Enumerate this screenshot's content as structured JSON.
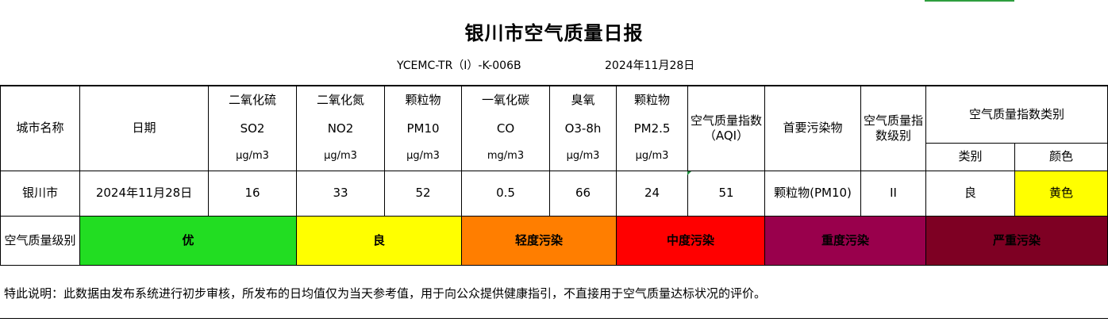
{
  "report": {
    "title": "银川市空气质量日报",
    "code": "YCEMC-TR（I）-K-006B",
    "date": "2024年11月28日"
  },
  "headers": {
    "city": "城市名称",
    "date": "日期",
    "so2": {
      "name": "二氧化硫",
      "formula": "SO2",
      "unit": "μg/m3"
    },
    "no2": {
      "name": "二氧化氮",
      "formula": "NO2",
      "unit": "μg/m3"
    },
    "pm10": {
      "name": "颗粒物",
      "formula": "PM10",
      "unit": "μg/m3"
    },
    "co": {
      "name": "一氧化碳",
      "formula": "CO",
      "unit": "mg/m3"
    },
    "o3": {
      "name": "臭氧",
      "formula": "O3-8h",
      "unit": "μg/m3"
    },
    "pm25": {
      "name": "颗粒物",
      "formula": "PM2.5",
      "unit": "μg/m3"
    },
    "aqi": "空气质量指数（AQI）",
    "primary": "首要污染物",
    "level": "空气质量指数级别",
    "category": "空气质量指数类别",
    "category_type": "类别",
    "category_color": "颜色"
  },
  "row": {
    "city": "银川市",
    "date": "2024年11月28日",
    "so2": "16",
    "no2": "33",
    "pm10": "52",
    "co": "0.5",
    "o3": "66",
    "pm25": "24",
    "aqi": "51",
    "primary": "颗粒物(PM10)",
    "level": "II",
    "category": "良",
    "color": "黄色"
  },
  "levels": {
    "label": "空气质量级别",
    "items": [
      {
        "label": "优",
        "color": "#22dd22"
      },
      {
        "label": "良",
        "color": "#ffff00"
      },
      {
        "label": "轻度污染",
        "color": "#ff7e00"
      },
      {
        "label": "中度污染",
        "color": "#ff0000"
      },
      {
        "label": "重度污染",
        "color": "#99004c"
      },
      {
        "label": "严重污染",
        "color": "#7e0023"
      }
    ]
  },
  "note": "特此说明：此数据由发布系统进行初步审核，所发布的日均值仅为当天参考值，用于向公众提供健康指引，不直接用于空气质量达标状况的评价。",
  "colors": {
    "category_cell": "#ffff00"
  }
}
